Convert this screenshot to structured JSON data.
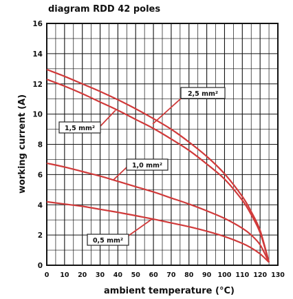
{
  "chart_data": {
    "type": "line",
    "title": "diagram RDD 42 poles",
    "xlabel": "ambient temperature (°C)",
    "ylabel": "working current (A)",
    "xlim": [
      0,
      130
    ],
    "ylim": [
      0,
      16
    ],
    "x_ticks": [
      "0",
      "10",
      "20",
      "30",
      "40",
      "50",
      "60",
      "70",
      "80",
      "90",
      "100",
      "110",
      "120",
      "130"
    ],
    "y_ticks": [
      "0",
      "2",
      "4",
      "6",
      "8",
      "10",
      "12",
      "14",
      "16"
    ],
    "grid": true,
    "line_color": "#d03a3a",
    "series": [
      {
        "name": "2,5 mm²",
        "x": [
          0,
          10,
          20,
          30,
          40,
          50,
          60,
          70,
          80,
          90,
          100,
          110,
          115,
          120,
          125
        ],
        "y": [
          12.95,
          12.5,
          12.0,
          11.5,
          10.95,
          10.35,
          9.7,
          9.0,
          8.15,
          7.2,
          6.05,
          4.55,
          3.55,
          2.3,
          0.2
        ]
      },
      {
        "name": "1,5 mm²",
        "x": [
          0,
          10,
          20,
          30,
          40,
          50,
          60,
          70,
          80,
          90,
          100,
          110,
          115,
          120,
          125
        ],
        "y": [
          12.3,
          11.85,
          11.35,
          10.8,
          10.25,
          9.65,
          9.05,
          8.35,
          7.6,
          6.7,
          5.7,
          4.3,
          3.35,
          2.15,
          0.2
        ]
      },
      {
        "name": "1,0 mm²",
        "x": [
          0,
          10,
          20,
          30,
          40,
          50,
          60,
          70,
          80,
          90,
          100,
          110,
          115,
          120,
          125
        ],
        "y": [
          6.75,
          6.5,
          6.2,
          5.9,
          5.55,
          5.2,
          4.85,
          4.45,
          4.05,
          3.6,
          3.1,
          2.45,
          2.0,
          1.35,
          0.2
        ]
      },
      {
        "name": "0,5 mm²",
        "x": [
          0,
          10,
          20,
          30,
          40,
          50,
          60,
          70,
          80,
          90,
          100,
          110,
          115,
          120,
          125
        ],
        "y": [
          4.2,
          4.05,
          3.9,
          3.7,
          3.5,
          3.28,
          3.05,
          2.8,
          2.55,
          2.25,
          1.9,
          1.45,
          1.15,
          0.75,
          0.2
        ]
      }
    ]
  }
}
